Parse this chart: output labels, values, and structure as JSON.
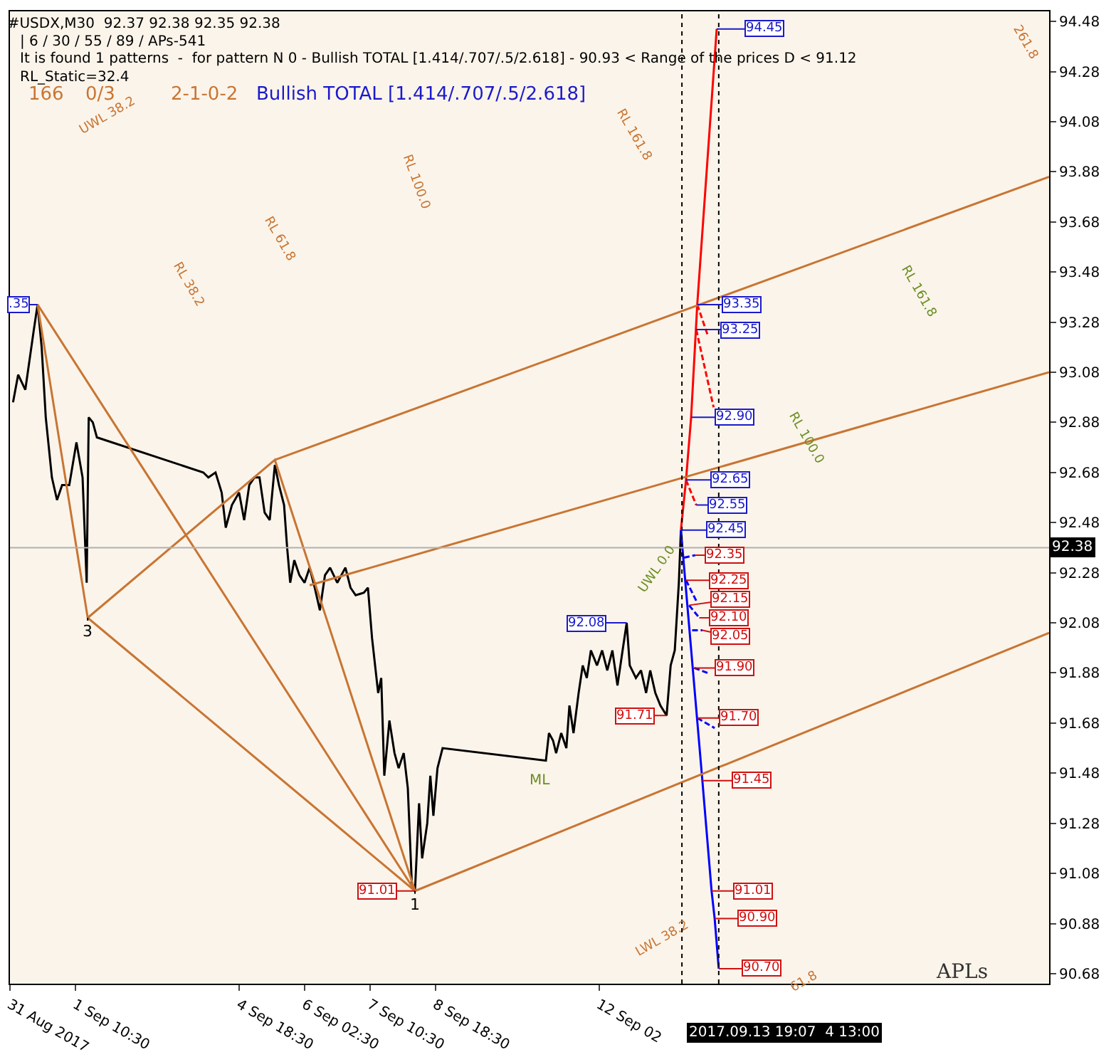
{
  "chart_data": {
    "type": "line",
    "title": "#USDX,M30  92.37 92.38 92.35 92.38",
    "subtitle": "| 6 / 30 / 55 / 89 / APs-541",
    "annotations": [
      "It is found 1 patterns  -  for pattern N 0 - Bullish TOTAL [1.414/.707/.5/2.618] - 90.93 < Range of the prices D < 91.12",
      "RL_Static=32.4",
      "166",
      "0/3",
      "2-1-0-2",
      "Bullish TOTAL [1.414/.707/.5/2.618]",
      "APLs",
      "2017.09.13 19:07  4 13:00",
      "UWL 38.2",
      "RL 38.2",
      "RL 61.8",
      "RL 100.0",
      "RL 161.8",
      "261.8",
      "LWL 38.2",
      "61.8",
      "RL 161.8",
      "RL 100.0",
      "UWL 0.0",
      "ML",
      {
        "text": "94.45",
        "x": "2017-09-14T12:00",
        "y": 94.45
      },
      {
        "text": "93.35",
        "x": "2017-09-14T02:30",
        "y": 93.35
      },
      {
        "text": "93.25",
        "x": "2017-09-14T02:00",
        "y": 93.25
      },
      {
        "text": "92.90",
        "x": "2017-09-13T23:30",
        "y": 92.9
      },
      {
        "text": "92.65",
        "x": "2017-09-13T21:00",
        "y": 92.65
      },
      {
        "text": "92.55",
        "x": "2017-09-14T02:00",
        "y": 92.55
      },
      {
        "text": "92.45",
        "x": "2017-09-13T18:30",
        "y": 92.45
      },
      {
        "text": "92.08",
        "x": "2017-09-12T16:00",
        "y": 92.08
      },
      {
        "text": ".35",
        "x": "2017-08-31T16:00",
        "y": 93.35
      },
      {
        "text": "92.35",
        "x": "2017-09-14T01:30",
        "y": 92.35
      },
      {
        "text": "92.25",
        "x": "2017-09-13T21:00",
        "y": 92.25
      },
      {
        "text": "92.15",
        "x": "2017-09-13T22:30",
        "y": 92.15
      },
      {
        "text": "92.10",
        "x": "2017-09-14T03:30",
        "y": 92.1
      },
      {
        "text": "92.05",
        "x": "2017-09-14T05:00",
        "y": 92.05
      },
      {
        "text": "91.90",
        "x": "2017-09-14T01:00",
        "y": 91.9
      },
      {
        "text": "91.70",
        "x": "2017-09-14T02:30",
        "y": 91.7
      },
      {
        "text": "91.45",
        "x": "2017-09-14T05:00",
        "y": 91.45
      },
      {
        "text": "91.01",
        "x": "2017-09-14T09:30",
        "y": 91.01
      },
      {
        "text": "90.90",
        "x": "2017-09-14T11:00",
        "y": 90.9
      },
      {
        "text": "90.70",
        "x": "2017-09-14T13:00",
        "y": 90.7
      },
      {
        "text": "91.71",
        "x": "2017-09-13T11:30",
        "y": 91.71
      },
      {
        "text": "91.01",
        "x": "2017-09-08T08:30",
        "y": 91.01
      },
      {
        "text": "3",
        "x": "2017-09-01T16:30",
        "y": 92.1
      },
      {
        "text": "1",
        "x": "2017-09-08T08:30",
        "y": 91.01
      }
    ],
    "series": [
      {
        "color": "#000000",
        "x": [
          "2017-08-31T04:00",
          "2017-08-31T06:30",
          "2017-08-31T10:00",
          "2017-08-31T14:00",
          "2017-08-31T16:00",
          "2017-08-31T18:00",
          "2017-08-31T20:00",
          "2017-08-31T23:00",
          "2017-09-01T01:30",
          "2017-09-01T04:00",
          "2017-09-01T07:30",
          "2017-09-01T11:00",
          "2017-09-01T14:00",
          "2017-09-01T16:00",
          "2017-09-01T17:00",
          "2017-09-01T19:00",
          "2017-09-01T21:00",
          "2017-09-04T01:00",
          "2017-09-04T03:30",
          "2017-09-04T07:00",
          "2017-09-04T10:00",
          "2017-09-04T12:00",
          "2017-09-04T15:00",
          "2017-09-04T18:30",
          "2017-09-04T21:00",
          "2017-09-04T23:30",
          "2017-09-05T02:00",
          "2017-09-05T04:30",
          "2017-09-05T07:00",
          "2017-09-05T09:30",
          "2017-09-05T12:00",
          "2017-09-05T14:00",
          "2017-09-05T16:30",
          "2017-09-05T18:00",
          "2017-09-05T19:30",
          "2017-09-05T21:30",
          "2017-09-06T00:00",
          "2017-09-06T02:30",
          "2017-09-06T05:00",
          "2017-09-06T07:30",
          "2017-09-06T10:00",
          "2017-09-06T12:30",
          "2017-09-06T15:00",
          "2017-09-06T18:30",
          "2017-09-06T22:30",
          "2017-09-07T01:00",
          "2017-09-07T03:30",
          "2017-09-07T07:30",
          "2017-09-07T09:30",
          "2017-09-07T11:30",
          "2017-09-07T14:30",
          "2017-09-07T16:00",
          "2017-09-07T17:30",
          "2017-09-07T20:00",
          "2017-09-07T22:30",
          "2017-09-08T00:30",
          "2017-09-08T03:00",
          "2017-09-08T05:00",
          "2017-09-08T07:00",
          "2017-09-08T08:30",
          "2017-09-08T10:30",
          "2017-09-08T12:00",
          "2017-09-08T14:30",
          "2017-09-08T16:00",
          "2017-09-08T17:30",
          "2017-09-08T19:30",
          "2017-09-08T22:00",
          "2017-09-11T00:30",
          "2017-09-11T02:00",
          "2017-09-11T04:00",
          "2017-09-11T05:30",
          "2017-09-11T08:00",
          "2017-09-11T10:30",
          "2017-09-11T12:00",
          "2017-09-11T14:00",
          "2017-09-11T16:30",
          "2017-09-11T18:30",
          "2017-09-11T20:30",
          "2017-09-11T22:30",
          "2017-09-12T01:30",
          "2017-09-12T04:00",
          "2017-09-12T06:30",
          "2017-09-12T09:00",
          "2017-09-12T11:30",
          "2017-09-12T14:00",
          "2017-09-12T16:00",
          "2017-09-12T17:30",
          "2017-09-12T20:30",
          "2017-09-12T23:00",
          "2017-09-13T01:30",
          "2017-09-13T03:30",
          "2017-09-13T06:00",
          "2017-09-13T08:30",
          "2017-09-13T11:30",
          "2017-09-13T13:30",
          "2017-09-13T15:30",
          "2017-09-13T17:30",
          "2017-09-13T18:30",
          "2017-09-13T19:00"
        ],
        "values": [
          92.96,
          93.07,
          93.01,
          93.24,
          93.35,
          93.18,
          92.9,
          92.66,
          92.57,
          92.63,
          92.63,
          92.8,
          92.66,
          92.24,
          92.9,
          92.88,
          92.82,
          92.68,
          92.66,
          92.68,
          92.6,
          92.46,
          92.55,
          92.6,
          92.49,
          92.63,
          92.66,
          92.66,
          92.52,
          92.49,
          92.71,
          92.63,
          92.55,
          92.38,
          92.24,
          92.33,
          92.27,
          92.24,
          92.3,
          92.22,
          92.13,
          92.27,
          92.3,
          92.24,
          92.3,
          92.22,
          92.19,
          92.2,
          92.22,
          92.02,
          91.8,
          91.86,
          91.47,
          91.69,
          91.56,
          91.5,
          91.56,
          91.42,
          91.03,
          91.01,
          91.36,
          91.14,
          91.28,
          91.47,
          91.31,
          91.5,
          91.58,
          91.53,
          91.64,
          91.61,
          91.56,
          91.64,
          91.58,
          91.75,
          91.64,
          91.8,
          91.91,
          91.86,
          91.97,
          91.91,
          91.97,
          91.89,
          91.97,
          91.83,
          91.97,
          92.08,
          91.91,
          91.86,
          91.89,
          91.8,
          91.89,
          91.8,
          91.75,
          91.71,
          91.91,
          91.97,
          92.24,
          92.45,
          92.38
        ]
      },
      {
        "color": "#ff0000",
        "x": [
          "2017-09-13T18:30",
          "2017-09-13T21:00",
          "2017-09-13T23:30",
          "2017-09-14T02:30",
          "2017-09-14T12:00"
        ],
        "values": [
          92.45,
          92.65,
          92.9,
          93.35,
          94.45
        ]
      },
      {
        "color": "#ff0000",
        "line_style": "dashed",
        "x": [
          "2017-09-14T02:30",
          "2017-09-14T07:30",
          null,
          "2017-09-14T02:00",
          "2017-09-14T10:30",
          null,
          "2017-09-13T21:00",
          "2017-09-14T02:00"
        ],
        "values": [
          93.35,
          93.23,
          null,
          93.25,
          92.94,
          null,
          92.65,
          92.55
        ]
      },
      {
        "color": "#0000ff",
        "x": [
          "2017-09-13T18:30",
          "2017-09-14T05:00",
          "2017-09-14T09:30",
          "2017-09-14T11:00",
          "2017-09-14T13:00"
        ],
        "values": [
          92.45,
          91.45,
          91.01,
          90.9,
          90.7
        ]
      },
      {
        "color": "#0000ff",
        "line_style": "dashed",
        "x": [
          "2017-09-13T20:00",
          "2017-09-14T01:30",
          null,
          "2017-09-13T21:00",
          "2017-09-14T02:30",
          null,
          "2017-09-13T22:30",
          "2017-09-14T03:30",
          null,
          "2017-09-14T00:00",
          "2017-09-14T05:00",
          null,
          "2017-09-14T01:00",
          "2017-09-14T07:30",
          null,
          "2017-09-14T02:30",
          "2017-09-14T11:00"
        ],
        "values": [
          92.34,
          92.35,
          null,
          92.25,
          92.16,
          null,
          92.15,
          92.1,
          null,
          92.05,
          92.05,
          null,
          91.9,
          91.88,
          null,
          91.7,
          91.66
        ]
      },
      {
        "color": "#c87533",
        "x": [
          "2017-08-31T16:00",
          "2017-09-01T16:30",
          "2017-09-05T12:00",
          "2017-09-08T08:30"
        ],
        "values": [
          93.35,
          92.1,
          92.73,
          91.01
        ]
      },
      {
        "color": "#c87533",
        "x": [
          "2017-08-31T16:00",
          "2017-09-08T08:30"
        ],
        "values": [
          93.35,
          91.01
        ]
      },
      {
        "color": "#c87533",
        "x": [
          "2017-09-01T16:30",
          "2017-09-08T08:30"
        ],
        "values": [
          92.1,
          91.01
        ]
      },
      {
        "color": "#c87533",
        "x": [
          "2017-09-05T12:00",
          "2017-09-21T06:30"
        ],
        "values": [
          92.73,
          93.86
        ]
      },
      {
        "color": "#c87533",
        "x": [
          "2017-09-06T05:00",
          "2017-09-21T06:30"
        ],
        "values": [
          92.23,
          93.08
        ]
      },
      {
        "color": "#c87533",
        "x": [
          "2017-09-08T08:30",
          "2017-09-21T06:30"
        ],
        "values": [
          91.01,
          92.04
        ]
      }
    ],
    "ref_lines": [
      {
        "axis": "x",
        "value": "2017-09-13T19:00",
        "line_style": "dotted",
        "color": "#000000"
      },
      {
        "axis": "x",
        "value": "2017-09-14T13:00",
        "line_style": "dotted",
        "color": "#000000"
      },
      {
        "axis": "y",
        "value": 92.38,
        "label": "92.38",
        "color": "#b0b0b0"
      }
    ],
    "xlim": [
      "2017-08-31T02:30",
      "2017-09-21T06:30"
    ],
    "ylim": [
      90.64,
      94.52
    ],
    "xticks": [
      {
        "value": "2017-08-31T02:30",
        "label": "31 Aug 2017"
      },
      {
        "value": "2017-09-01T10:30",
        "label": "1 Sep 10:30"
      },
      {
        "value": "2017-09-04T18:30",
        "label": "4 Sep 18:30"
      },
      {
        "value": "2017-09-06T02:30",
        "label": "6 Sep 02:30"
      },
      {
        "value": "2017-09-07T10:30",
        "label": "7 Sep 10:30"
      },
      {
        "value": "2017-09-08T18:30",
        "label": "8 Sep 18:30"
      },
      {
        "value": "2017-09-12T02:30",
        "label": "12 Sep 02"
      }
    ],
    "yticks": [
      90.68,
      90.88,
      91.08,
      91.28,
      91.48,
      91.68,
      91.88,
      92.08,
      92.28,
      92.48,
      92.68,
      92.88,
      93.08,
      93.28,
      93.48,
      93.68,
      93.88,
      94.08,
      94.28,
      94.48
    ],
    "grid": false,
    "marker": "none",
    "line_style": "solid"
  }
}
